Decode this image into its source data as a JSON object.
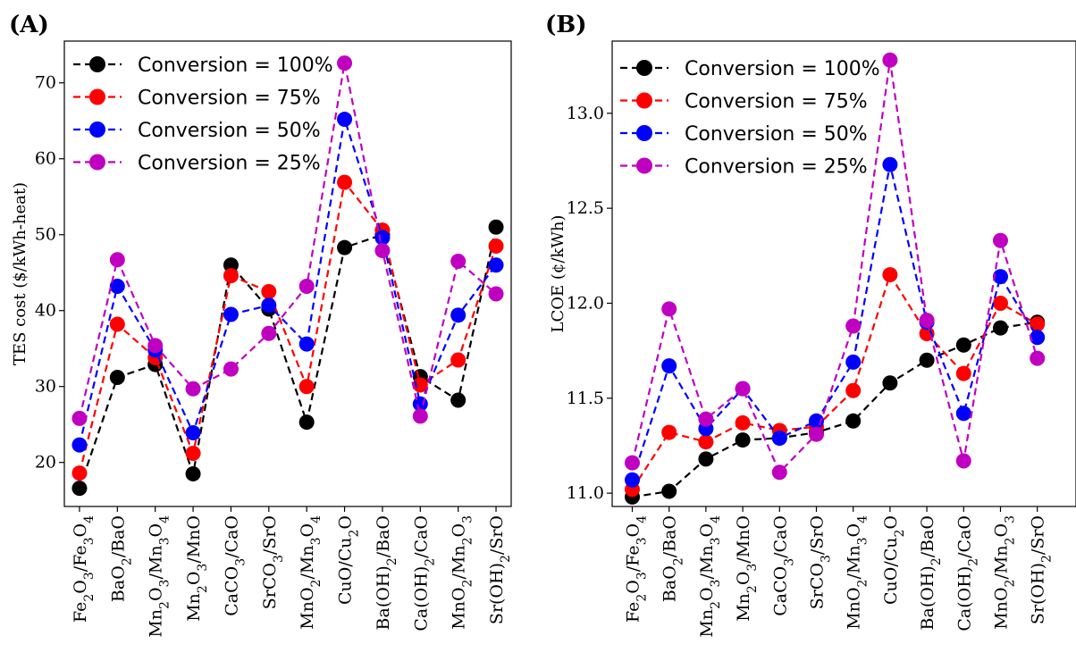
{
  "chart_data": [
    {
      "panel_label": "(A)",
      "type": "line",
      "ylabel": "TES cost ($/kWh-heat)",
      "xlabel": "",
      "categories": [
        {
          "main": "Fe",
          "parts": [
            [
              "Fe",
              ""
            ],
            [
              "2",
              "sub"
            ],
            [
              "O",
              ""
            ],
            [
              "3",
              "sub"
            ],
            [
              "/Fe",
              ""
            ],
            [
              "3",
              "sub"
            ],
            [
              "O",
              ""
            ],
            [
              "4",
              "sub"
            ]
          ]
        },
        {
          "main": "BaO2/BaO",
          "parts": [
            [
              "BaO",
              ""
            ],
            [
              "2",
              "sub"
            ],
            [
              "/BaO",
              ""
            ]
          ]
        },
        {
          "main": "Mn2O3/Mn3O4",
          "parts": [
            [
              "Mn",
              ""
            ],
            [
              "2",
              "sub"
            ],
            [
              "O",
              ""
            ],
            [
              "3",
              "sub"
            ],
            [
              "/Mn",
              ""
            ],
            [
              "3",
              "sub"
            ],
            [
              "O",
              ""
            ],
            [
              "4",
              "sub"
            ]
          ]
        },
        {
          "main": "Mn2O3/MnO",
          "parts": [
            [
              "Mn",
              ""
            ],
            [
              "2",
              "sub"
            ],
            [
              "O",
              ""
            ],
            [
              "3",
              "sub"
            ],
            [
              "/MnO",
              ""
            ]
          ]
        },
        {
          "main": "CaCO3/CaO",
          "parts": [
            [
              "CaCO",
              ""
            ],
            [
              "3",
              "sub"
            ],
            [
              "/CaO",
              ""
            ]
          ]
        },
        {
          "main": "SrCO3/SrO",
          "parts": [
            [
              "SrCO",
              ""
            ],
            [
              "3",
              "sub"
            ],
            [
              "/SrO",
              ""
            ]
          ]
        },
        {
          "main": "MnO2/Mn3O4",
          "parts": [
            [
              "MnO",
              ""
            ],
            [
              "2",
              "sub"
            ],
            [
              "/Mn",
              ""
            ],
            [
              "3",
              "sub"
            ],
            [
              "O",
              ""
            ],
            [
              "4",
              "sub"
            ]
          ]
        },
        {
          "main": "CuO/Cu2O",
          "parts": [
            [
              "CuO/Cu",
              ""
            ],
            [
              "2",
              "sub"
            ],
            [
              "O",
              ""
            ]
          ]
        },
        {
          "main": "Ba(OH)2/BaO",
          "parts": [
            [
              "Ba(OH)",
              ""
            ],
            [
              "2",
              "sub"
            ],
            [
              "/BaO",
              ""
            ]
          ]
        },
        {
          "main": "Ca(OH)2/CaO",
          "parts": [
            [
              "Ca(OH)",
              ""
            ],
            [
              "2",
              "sub"
            ],
            [
              "/CaO",
              ""
            ]
          ]
        },
        {
          "main": "MnO2/Mn2O3",
          "parts": [
            [
              "MnO",
              ""
            ],
            [
              "2",
              "sub"
            ],
            [
              "/Mn",
              ""
            ],
            [
              "2",
              "sub"
            ],
            [
              "O",
              ""
            ],
            [
              "3",
              "sub"
            ]
          ]
        },
        {
          "main": "Sr(OH)2/SrO",
          "parts": [
            [
              "Sr(OH)",
              ""
            ],
            [
              "2",
              "sub"
            ],
            [
              "/SrO",
              ""
            ]
          ]
        }
      ],
      "ylim": [
        14.2,
        75.5
      ],
      "yticks": [
        20,
        30,
        40,
        50,
        60,
        70
      ],
      "grid": false,
      "legend_position": "top-left",
      "series": [
        {
          "name": "Conversion = 100%",
          "color": "#000000",
          "values": [
            16.6,
            31.2,
            32.9,
            18.5,
            46.0,
            40.2,
            25.3,
            48.3,
            50.0,
            31.3,
            28.2,
            51.0
          ]
        },
        {
          "name": "Conversion = 75%",
          "color": "#ff0000",
          "values": [
            18.6,
            38.2,
            33.8,
            21.2,
            44.6,
            42.5,
            30.0,
            56.9,
            50.6,
            30.2,
            33.5,
            48.5
          ]
        },
        {
          "name": "Conversion = 50%",
          "color": "#0000ff",
          "values": [
            22.3,
            43.2,
            34.8,
            23.9,
            39.5,
            40.7,
            35.6,
            65.2,
            49.6,
            27.7,
            39.4,
            46.0
          ]
        },
        {
          "name": "Conversion = 25%",
          "color": "#c000c0",
          "values": [
            25.8,
            46.7,
            35.4,
            29.7,
            32.3,
            37.0,
            43.2,
            72.6,
            47.9,
            26.1,
            46.5,
            42.2
          ]
        }
      ]
    },
    {
      "panel_label": "(B)",
      "type": "line",
      "ylabel": "LCOE (¢/kWh)",
      "xlabel": "",
      "categories": [
        {
          "main": "Fe2O3/Fe3O4",
          "parts": [
            [
              "Fe",
              ""
            ],
            [
              "2",
              "sub"
            ],
            [
              "O",
              ""
            ],
            [
              "3",
              "sub"
            ],
            [
              "/Fe",
              ""
            ],
            [
              "3",
              "sub"
            ],
            [
              "O",
              ""
            ],
            [
              "4",
              "sub"
            ]
          ]
        },
        {
          "main": "BaO2/BaO",
          "parts": [
            [
              "BaO",
              ""
            ],
            [
              "2",
              "sub"
            ],
            [
              "/BaO",
              ""
            ]
          ]
        },
        {
          "main": "Mn2O3/Mn3O4",
          "parts": [
            [
              "Mn",
              ""
            ],
            [
              "2",
              "sub"
            ],
            [
              "O",
              ""
            ],
            [
              "3",
              "sub"
            ],
            [
              "/Mn",
              ""
            ],
            [
              "3",
              "sub"
            ],
            [
              "O",
              ""
            ],
            [
              "4",
              "sub"
            ]
          ]
        },
        {
          "main": "Mn2O3/MnO",
          "parts": [
            [
              "Mn",
              ""
            ],
            [
              "2",
              "sub"
            ],
            [
              "O",
              ""
            ],
            [
              "3",
              "sub"
            ],
            [
              "/MnO",
              ""
            ]
          ]
        },
        {
          "main": "CaCO3/CaO",
          "parts": [
            [
              "CaCO",
              ""
            ],
            [
              "3",
              "sub"
            ],
            [
              "/CaO",
              ""
            ]
          ]
        },
        {
          "main": "SrCO3/SrO",
          "parts": [
            [
              "SrCO",
              ""
            ],
            [
              "3",
              "sub"
            ],
            [
              "/SrO",
              ""
            ]
          ]
        },
        {
          "main": "MnO2/Mn3O4",
          "parts": [
            [
              "MnO",
              ""
            ],
            [
              "2",
              "sub"
            ],
            [
              "/Mn",
              ""
            ],
            [
              "3",
              "sub"
            ],
            [
              "O",
              ""
            ],
            [
              "4",
              "sub"
            ]
          ]
        },
        {
          "main": "CuO/Cu2O",
          "parts": [
            [
              "CuO/Cu",
              ""
            ],
            [
              "2",
              "sub"
            ],
            [
              "O",
              ""
            ]
          ]
        },
        {
          "main": "Ba(OH)2/BaO",
          "parts": [
            [
              "Ba(OH)",
              ""
            ],
            [
              "2",
              "sub"
            ],
            [
              "/BaO",
              ""
            ]
          ]
        },
        {
          "main": "Ca(OH)2/CaO",
          "parts": [
            [
              "Ca(OH)",
              ""
            ],
            [
              "2",
              "sub"
            ],
            [
              "/CaO",
              ""
            ]
          ]
        },
        {
          "main": "MnO2/Mn2O3",
          "parts": [
            [
              "MnO",
              ""
            ],
            [
              "2",
              "sub"
            ],
            [
              "/Mn",
              ""
            ],
            [
              "2",
              "sub"
            ],
            [
              "O",
              ""
            ],
            [
              "3",
              "sub"
            ]
          ]
        },
        {
          "main": "Sr(OH)2/SrO",
          "parts": [
            [
              "Sr(OH)",
              ""
            ],
            [
              "2",
              "sub"
            ],
            [
              "/SrO",
              ""
            ]
          ]
        }
      ],
      "ylim": [
        10.93,
        13.38
      ],
      "yticks": [
        11.0,
        11.5,
        12.0,
        12.5,
        13.0
      ],
      "grid": false,
      "legend_position": "top-left",
      "series": [
        {
          "name": "Conversion = 100%",
          "color": "#000000",
          "values": [
            10.98,
            11.01,
            11.18,
            11.28,
            11.29,
            11.32,
            11.38,
            11.58,
            11.7,
            11.78,
            11.87,
            11.9
          ]
        },
        {
          "name": "Conversion = 75%",
          "color": "#ff0000",
          "values": [
            11.02,
            11.32,
            11.27,
            11.37,
            11.33,
            11.35,
            11.54,
            12.15,
            11.84,
            11.63,
            12.0,
            11.89
          ]
        },
        {
          "name": "Conversion = 50%",
          "color": "#0000ff",
          "values": [
            11.07,
            11.67,
            11.34,
            11.55,
            11.29,
            11.38,
            11.69,
            12.73,
            11.9,
            11.42,
            12.14,
            11.82
          ]
        },
        {
          "name": "Conversion = 25%",
          "color": "#c000c0",
          "values": [
            11.16,
            11.97,
            11.39,
            11.55,
            11.11,
            11.31,
            11.88,
            13.28,
            11.91,
            11.17,
            12.33,
            11.71
          ]
        }
      ]
    }
  ]
}
